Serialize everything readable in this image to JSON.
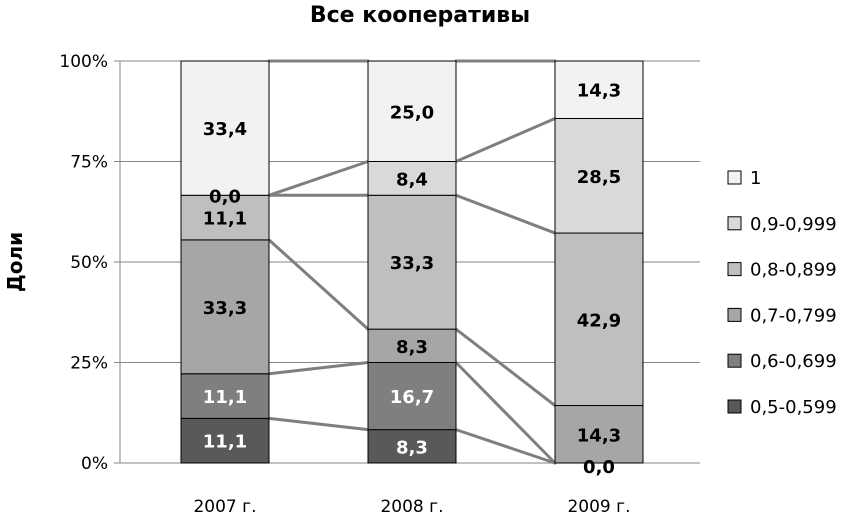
{
  "chart_data": {
    "type": "bar",
    "stacked": true,
    "percent": true,
    "title": "Все кооперативы",
    "ylabel": "Доли",
    "xlabel": "",
    "ylim": [
      0,
      100
    ],
    "yticks": [
      "0%",
      "25%",
      "50%",
      "75%",
      "100%"
    ],
    "ytick_values": [
      0,
      25,
      50,
      75,
      100
    ],
    "categories": [
      "2007 г.",
      "2008 г.",
      "2009 г."
    ],
    "series": [
      {
        "name": "0,5-0,599",
        "color": "#595959",
        "text_color": "#ffffff",
        "values": [
          11.1,
          8.3,
          0.0
        ],
        "labels": [
          "11,1",
          "8,3",
          "0,0"
        ]
      },
      {
        "name": "0,6-0,699",
        "color": "#7f7f7f",
        "text_color": "#ffffff",
        "values": [
          11.1,
          16.7,
          0.0
        ],
        "labels": [
          "11,1",
          "16,7",
          ""
        ]
      },
      {
        "name": "0,7-0,799",
        "color": "#a6a6a6",
        "text_color": "#000000",
        "values": [
          33.3,
          8.3,
          14.3
        ],
        "labels": [
          "33,3",
          "8,3",
          "14,3"
        ]
      },
      {
        "name": "0,8-0,899",
        "color": "#bfbfbf",
        "text_color": "#000000",
        "values": [
          11.1,
          33.3,
          42.9
        ],
        "labels": [
          "11,1",
          "33,3",
          "42,9"
        ]
      },
      {
        "name": "0,9-0,999",
        "color": "#d9d9d9",
        "text_color": "#000000",
        "values": [
          0.0,
          8.4,
          28.5
        ],
        "labels": [
          "0,0",
          "8,4",
          "28,5"
        ]
      },
      {
        "name": "1",
        "color": "#f2f2f2",
        "text_color": "#000000",
        "values": [
          33.4,
          25.0,
          14.3
        ],
        "labels": [
          "33,4",
          "25,0",
          "14,3"
        ]
      }
    ],
    "connector_lines": true,
    "grid": true,
    "legend_position": "right"
  }
}
